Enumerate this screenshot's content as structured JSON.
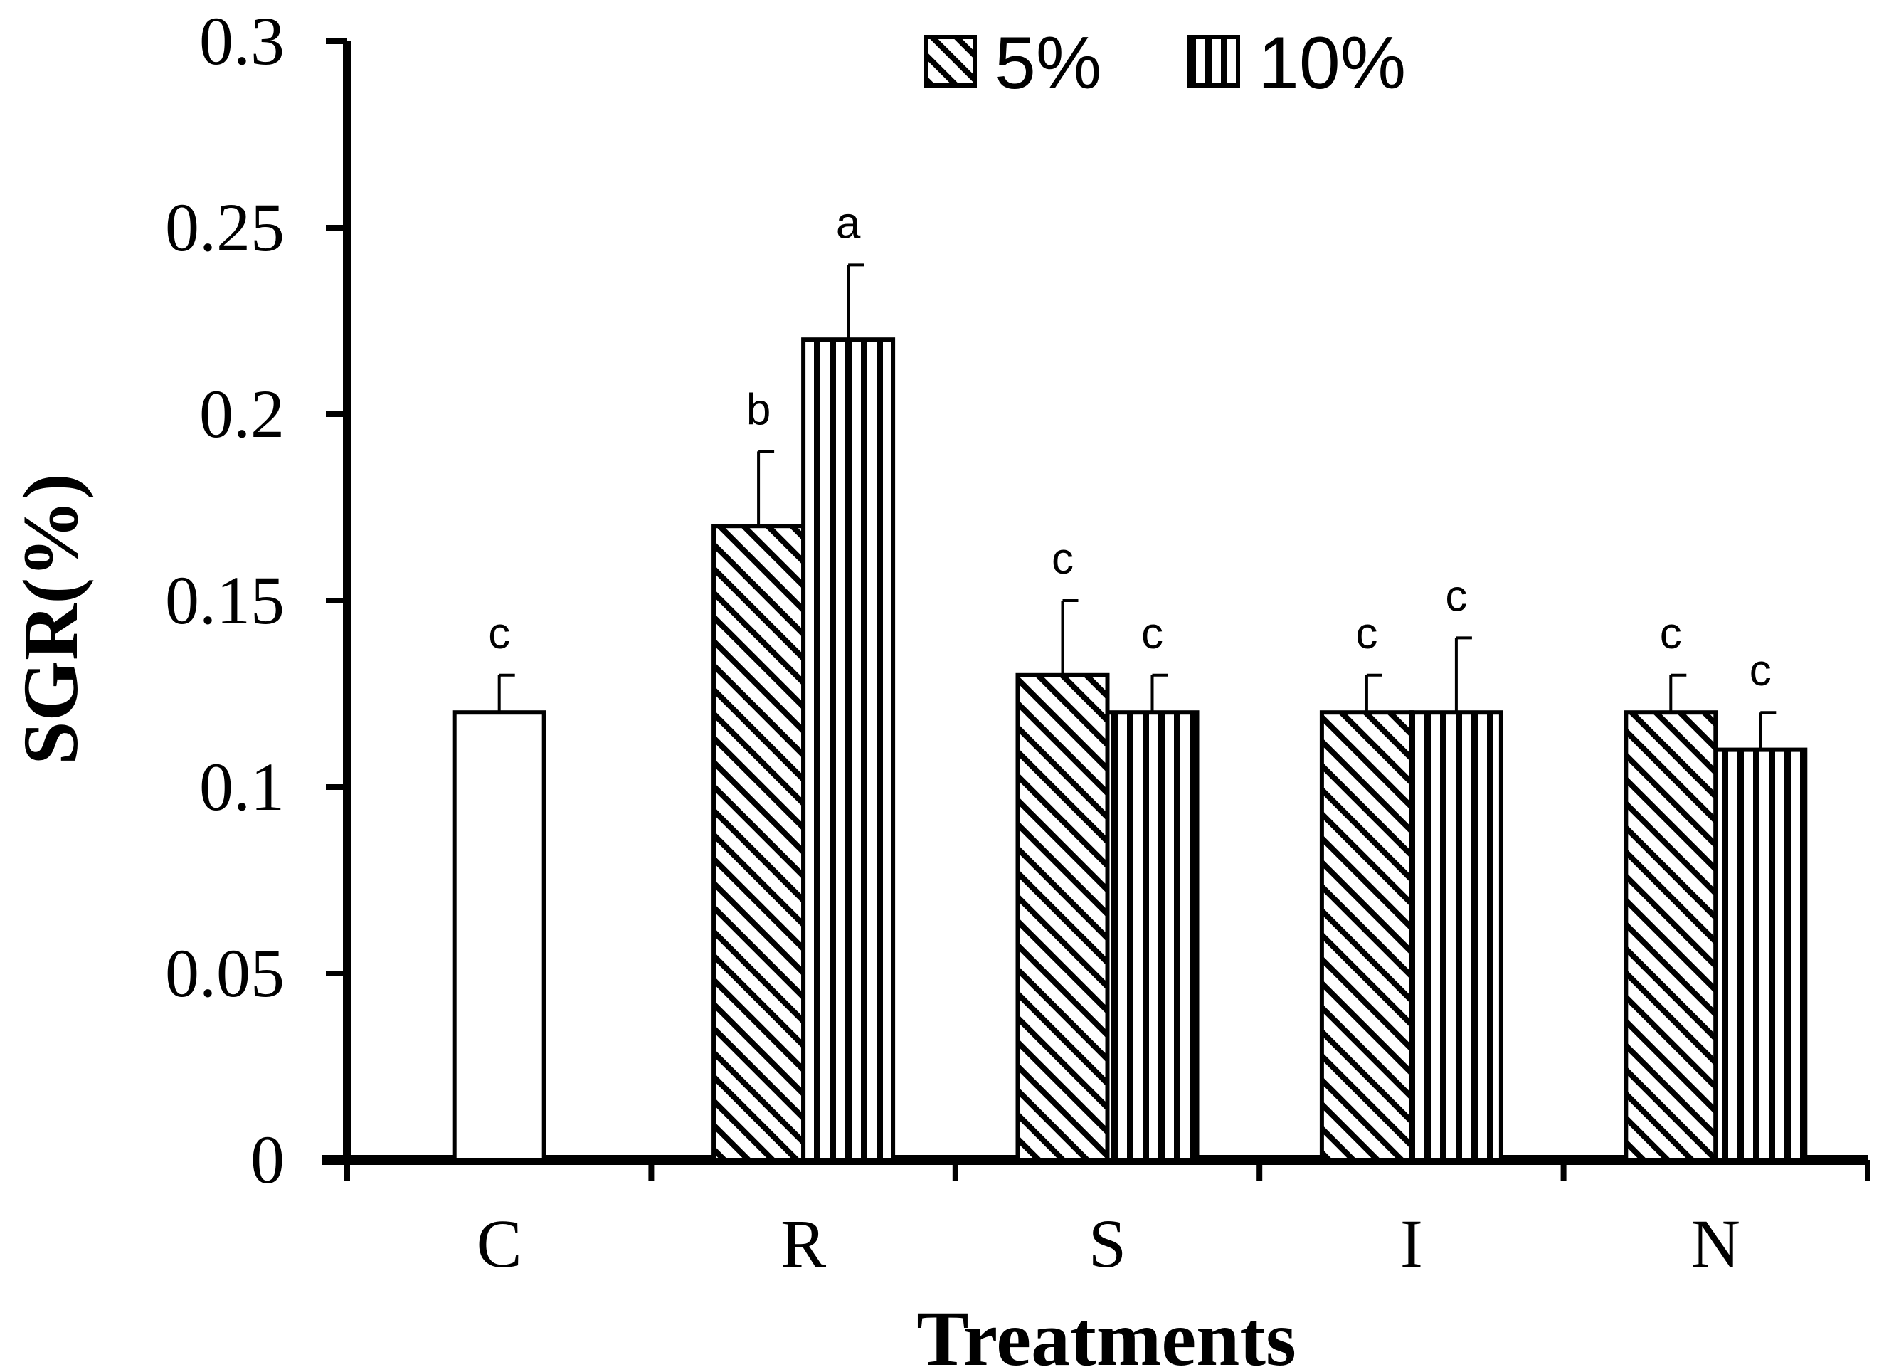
{
  "chart_data": {
    "type": "bar",
    "title": "",
    "xlabel": "Treatments",
    "ylabel": "SGR(%)",
    "ylim": [
      0,
      0.3
    ],
    "yticks": [
      {
        "value": 0,
        "label": "0"
      },
      {
        "value": 0.05,
        "label": "0.05"
      },
      {
        "value": 0.1,
        "label": "0.1"
      },
      {
        "value": 0.15,
        "label": "0.15"
      },
      {
        "value": 0.2,
        "label": "0.2"
      },
      {
        "value": 0.25,
        "label": "0.25"
      },
      {
        "value": 0.3,
        "label": "0.3"
      }
    ],
    "categories": [
      "C",
      "R",
      "S",
      "I",
      "N"
    ],
    "legend": {
      "position": "top",
      "entries": [
        "5%",
        "10%"
      ]
    },
    "control": {
      "category": "C",
      "value": 0.12,
      "error": 0.01,
      "sig": "c"
    },
    "series": [
      {
        "name": "5%",
        "pattern": "diagonal",
        "values": [
          null,
          0.17,
          0.13,
          0.12,
          0.12
        ],
        "errors": [
          null,
          0.02,
          0.02,
          0.01,
          0.01
        ],
        "sig": [
          null,
          "b",
          "c",
          "c",
          "c"
        ]
      },
      {
        "name": "10%",
        "pattern": "vertical",
        "values": [
          null,
          0.22,
          0.12,
          0.12,
          0.11
        ],
        "errors": [
          null,
          0.02,
          0.01,
          0.02,
          0.01
        ],
        "sig": [
          null,
          "a",
          "c",
          "c",
          "c"
        ]
      }
    ]
  }
}
